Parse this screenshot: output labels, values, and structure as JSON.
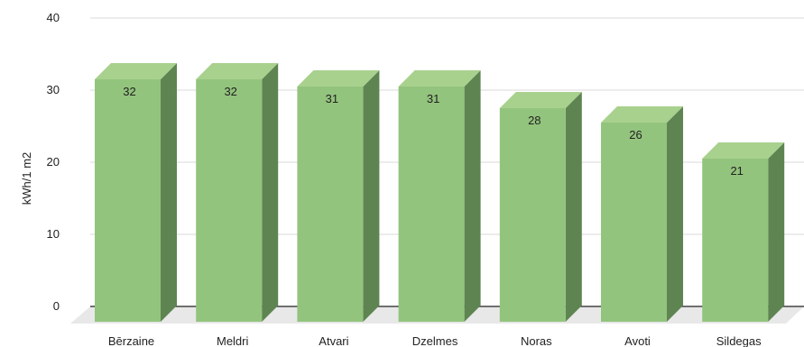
{
  "chart_data": {
    "type": "bar",
    "categories": [
      "Bērzaine",
      "Meldri",
      "Atvari",
      "Dzelmes",
      "Noras",
      "Avoti",
      "Sildegas"
    ],
    "values": [
      32,
      32,
      31,
      31,
      28,
      26,
      21
    ],
    "data_labels": [
      "32",
      "32",
      "31",
      "31",
      "28",
      "26",
      "21"
    ],
    "ylabel": "kWh/1 m2",
    "xlabel": "",
    "ylim": [
      0,
      40
    ],
    "yticks": [
      "0",
      "10",
      "20",
      "30",
      "40"
    ],
    "grid": true,
    "style": "3d",
    "colors": {
      "bar_front": "#93c47d",
      "bar_top": "#a9d18e",
      "bar_side": "#5e8551",
      "floor": "#e8e8e8",
      "grid": "#d9d9d9",
      "zero_line": "#444444"
    }
  }
}
